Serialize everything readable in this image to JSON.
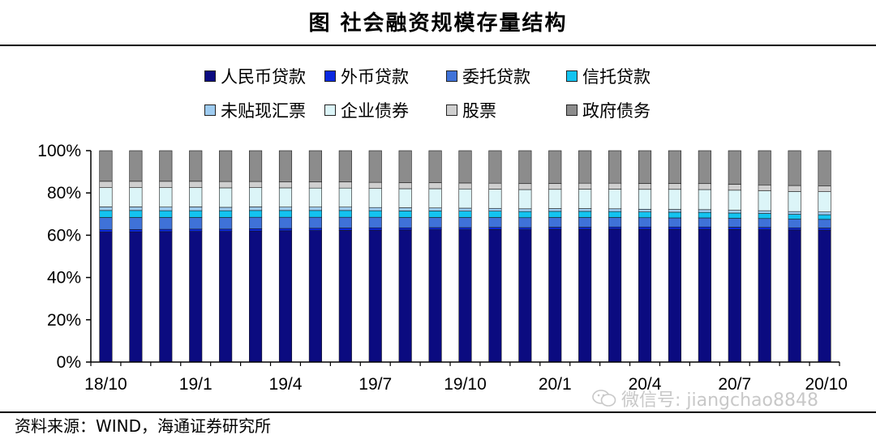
{
  "title": "图 社会融资规模存量结构",
  "source": "资料来源：WIND，海通证券研究所",
  "watermark": "微信号: jiangchao8848",
  "chart_data": {
    "type": "bar",
    "stacked": true,
    "percent": true,
    "ylim": [
      0,
      100
    ],
    "yticks": [
      "0%",
      "20%",
      "40%",
      "60%",
      "80%",
      "100%"
    ],
    "xtick_labels": [
      "18/10",
      "19/1",
      "19/4",
      "19/7",
      "19/10",
      "20/1",
      "20/4",
      "20/7",
      "20/10"
    ],
    "xtick_every": 3,
    "categories": [
      "18/10",
      "18/11",
      "18/12",
      "19/1",
      "19/2",
      "19/3",
      "19/4",
      "19/5",
      "19/6",
      "19/7",
      "19/8",
      "19/9",
      "19/10",
      "19/11",
      "19/12",
      "20/1",
      "20/2",
      "20/3",
      "20/4",
      "20/5",
      "20/6",
      "20/7",
      "20/8",
      "20/9",
      "20/10"
    ],
    "legend_position": "top",
    "series": [
      {
        "name": "人民币贷款",
        "color": "#0b0b80",
        "values": [
          61.5,
          61.6,
          61.7,
          61.8,
          61.8,
          62.0,
          62.1,
          62.2,
          62.3,
          62.4,
          62.5,
          62.6,
          62.6,
          62.7,
          62.6,
          62.8,
          62.8,
          62.9,
          62.8,
          62.8,
          62.8,
          62.7,
          62.6,
          62.5,
          62.4
        ]
      },
      {
        "name": "外币贷款",
        "color": "#0a28e0",
        "values": [
          1.1,
          1.1,
          1.1,
          1.1,
          1.1,
          1.1,
          1.1,
          1.1,
          1.1,
          1.1,
          1.0,
          1.0,
          1.0,
          1.0,
          1.0,
          1.0,
          1.0,
          1.0,
          1.1,
          1.1,
          1.1,
          1.1,
          1.1,
          1.0,
          1.0
        ]
      },
      {
        "name": "委托贷款",
        "color": "#3f72d8",
        "values": [
          5.8,
          5.7,
          5.6,
          5.5,
          5.5,
          5.4,
          5.3,
          5.2,
          5.1,
          5.0,
          4.9,
          4.8,
          4.8,
          4.7,
          4.7,
          4.6,
          4.6,
          4.5,
          4.4,
          4.3,
          4.3,
          4.2,
          4.2,
          4.1,
          4.1
        ]
      },
      {
        "name": "信托贷款",
        "color": "#13c3f0",
        "values": [
          3.3,
          3.3,
          3.2,
          3.2,
          3.2,
          3.2,
          3.2,
          3.2,
          3.2,
          3.1,
          3.1,
          3.1,
          3.0,
          3.0,
          2.9,
          2.9,
          2.9,
          2.8,
          2.7,
          2.7,
          2.6,
          2.5,
          2.4,
          2.3,
          2.2
        ]
      },
      {
        "name": "未贴现汇票",
        "color": "#9ecbf0",
        "values": [
          1.7,
          1.7,
          1.7,
          1.8,
          1.6,
          1.7,
          1.6,
          1.6,
          1.6,
          1.5,
          1.5,
          1.4,
          1.4,
          1.3,
          1.3,
          1.3,
          1.3,
          1.3,
          1.3,
          1.3,
          1.3,
          1.3,
          1.3,
          1.3,
          1.3
        ]
      },
      {
        "name": "企业债券",
        "color": "#dcf5f8",
        "values": [
          9.1,
          9.1,
          9.2,
          9.1,
          9.2,
          9.1,
          9.1,
          9.0,
          9.0,
          9.0,
          9.0,
          9.1,
          9.1,
          9.1,
          9.1,
          9.1,
          9.2,
          9.3,
          9.4,
          9.5,
          9.5,
          9.5,
          9.4,
          9.5,
          9.6
        ]
      },
      {
        "name": "股票",
        "color": "#cfcfcf",
        "values": [
          3.0,
          3.0,
          3.0,
          3.0,
          3.0,
          2.9,
          2.9,
          2.9,
          2.9,
          2.9,
          2.9,
          2.9,
          2.8,
          2.8,
          2.8,
          2.8,
          2.8,
          2.8,
          2.8,
          2.8,
          2.8,
          2.8,
          2.8,
          2.8,
          2.8
        ]
      },
      {
        "name": "政府债务",
        "color": "#8c8c8c",
        "values": [
          14.5,
          14.5,
          14.5,
          14.5,
          14.6,
          14.6,
          14.7,
          14.8,
          14.8,
          15.0,
          15.1,
          15.1,
          15.3,
          15.4,
          15.6,
          15.5,
          15.4,
          15.4,
          15.5,
          15.5,
          15.6,
          15.9,
          16.2,
          16.5,
          16.6
        ]
      }
    ]
  }
}
